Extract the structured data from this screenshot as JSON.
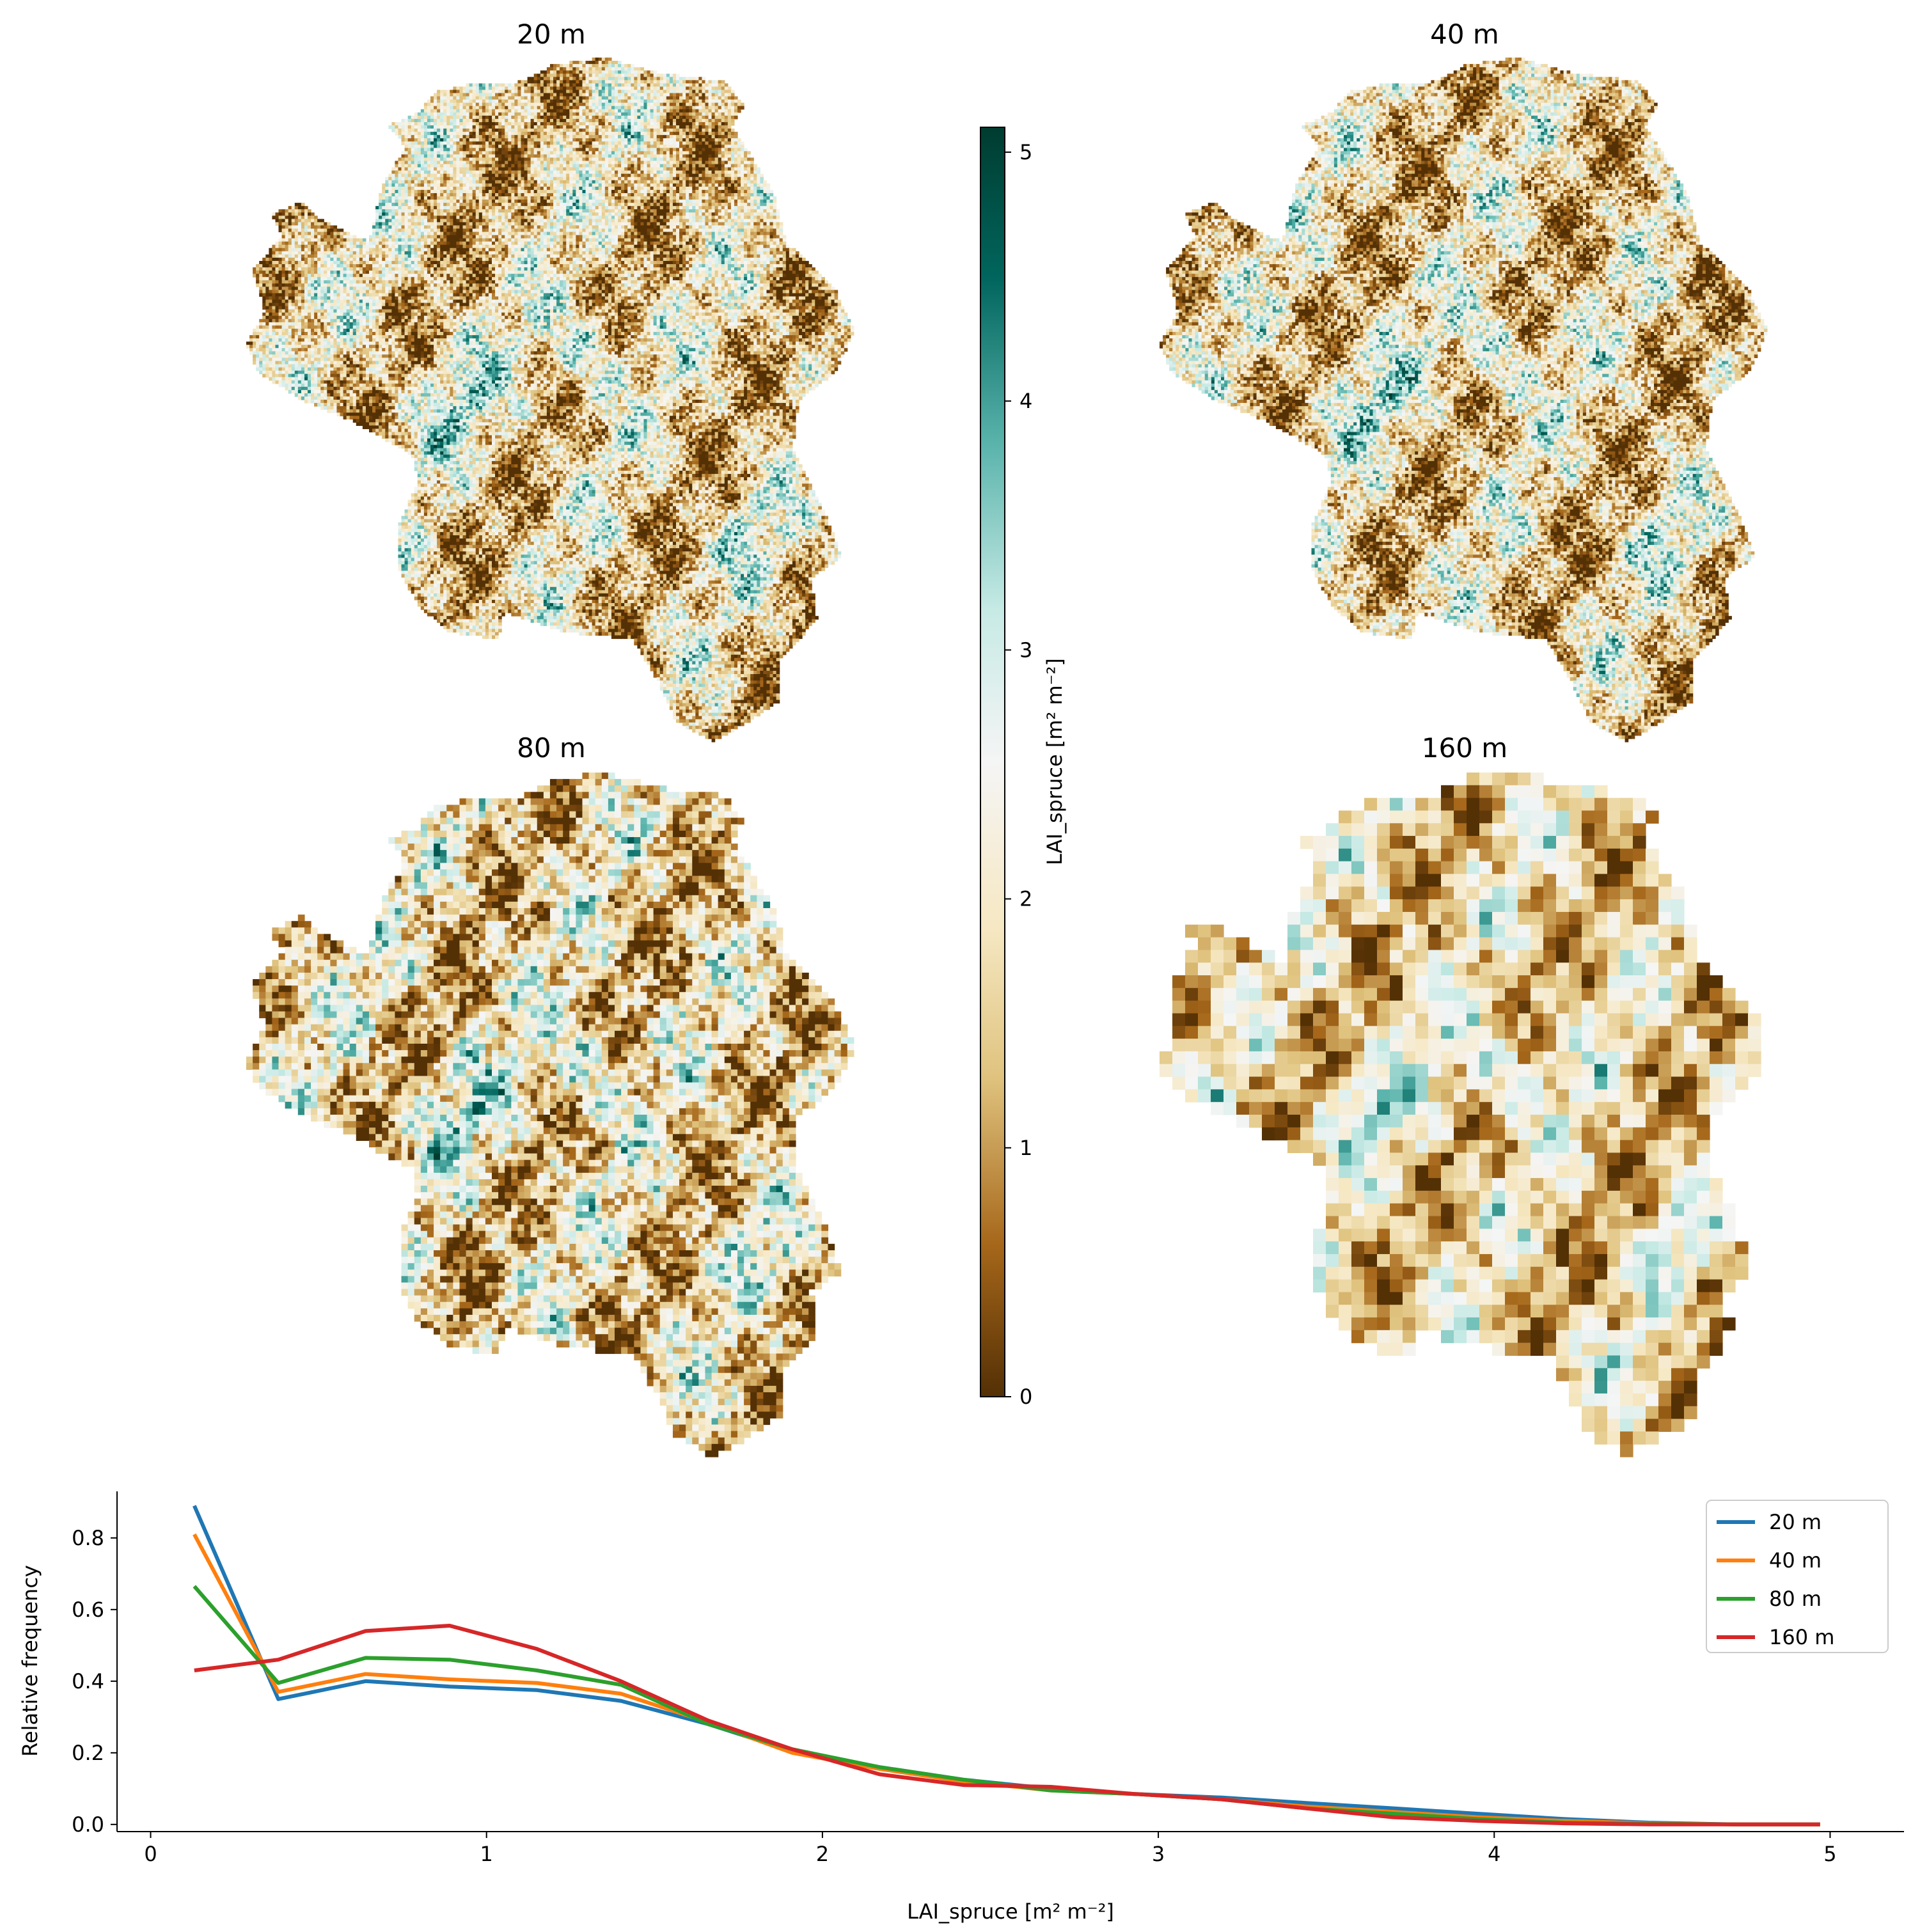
{
  "colors": {
    "brown_dark": "#543005",
    "brown": "#a6671a",
    "tan": "#dfc27d",
    "cream": "#f6e8c3",
    "white": "#f5f5f5",
    "mint": "#c7eae5",
    "teal": "#5ab4ac",
    "teal_dark": "#01665e",
    "teal_deep": "#003c30"
  },
  "maps": [
    {
      "title": "20 m"
    },
    {
      "title": "40 m"
    },
    {
      "title": "80 m"
    },
    {
      "title": "160 m"
    }
  ],
  "colorbar": {
    "label": "LAI_spruce [m² m⁻²]",
    "ticks": [
      "0",
      "1",
      "2",
      "3",
      "4",
      "5"
    ],
    "range": [
      0,
      5.1
    ],
    "colormap": "BrBG"
  },
  "chart_data": {
    "type": "line",
    "xlabel": "LAI_spruce [m² m⁻²]",
    "ylabel": "Relative frequency",
    "xlim": [
      -0.1,
      5.22
    ],
    "ylim": [
      -0.02,
      0.93
    ],
    "xticks": [
      "0",
      "1",
      "2",
      "3",
      "4",
      "5"
    ],
    "yticks": [
      "0.0",
      "0.2",
      "0.4",
      "0.6",
      "0.8"
    ],
    "legend_position": "top-right",
    "x": [
      0.13,
      0.38,
      0.64,
      0.89,
      1.15,
      1.4,
      1.66,
      1.91,
      2.17,
      2.42,
      2.68,
      2.93,
      3.19,
      3.44,
      3.7,
      3.95,
      4.21,
      4.46,
      4.72,
      4.97
    ],
    "series": [
      {
        "name": "20 m",
        "color": "#1f77b4",
        "values": [
          0.89,
          0.35,
          0.4,
          0.385,
          0.375,
          0.345,
          0.28,
          0.205,
          0.16,
          0.125,
          0.1,
          0.085,
          0.075,
          0.06,
          0.045,
          0.03,
          0.015,
          0.005,
          0.0,
          0.0
        ]
      },
      {
        "name": "40 m",
        "color": "#ff7f0e",
        "values": [
          0.81,
          0.37,
          0.42,
          0.405,
          0.395,
          0.365,
          0.285,
          0.2,
          0.155,
          0.12,
          0.095,
          0.085,
          0.07,
          0.05,
          0.035,
          0.02,
          0.01,
          0.003,
          0.0,
          0.0
        ]
      },
      {
        "name": "80 m",
        "color": "#2ca02c",
        "values": [
          0.665,
          0.395,
          0.465,
          0.46,
          0.43,
          0.39,
          0.28,
          0.21,
          0.16,
          0.125,
          0.095,
          0.085,
          0.07,
          0.045,
          0.03,
          0.015,
          0.005,
          0.002,
          0.0,
          0.0
        ]
      },
      {
        "name": "160 m",
        "color": "#d62728",
        "values": [
          0.43,
          0.46,
          0.54,
          0.555,
          0.49,
          0.4,
          0.29,
          0.21,
          0.14,
          0.11,
          0.105,
          0.085,
          0.07,
          0.045,
          0.02,
          0.01,
          0.003,
          0.0,
          0.0,
          0.0
        ]
      }
    ]
  }
}
